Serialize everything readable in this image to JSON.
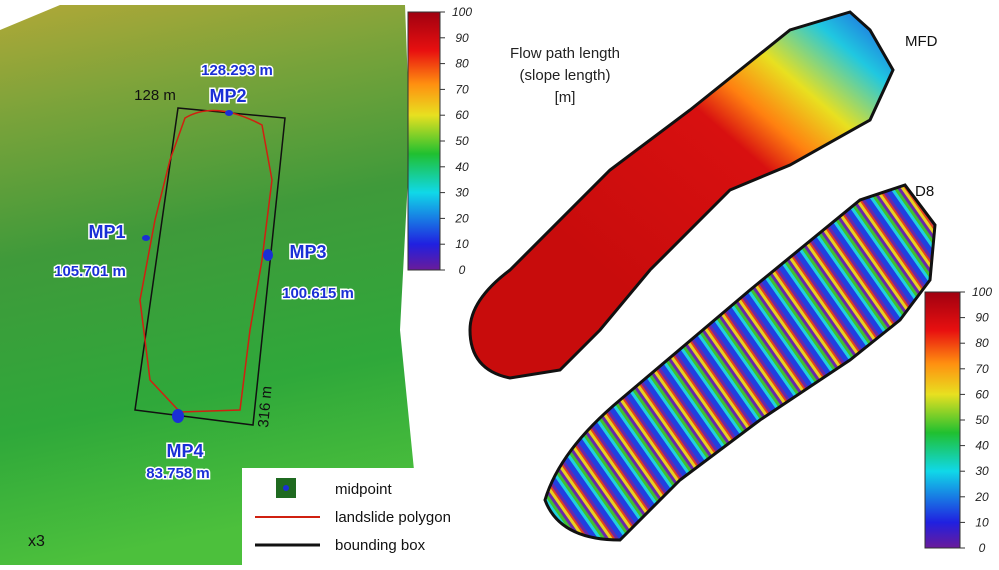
{
  "terrain": {
    "points": [
      {
        "name": "MP2",
        "distance": "128.293 m"
      },
      {
        "name": "MP1",
        "distance": "105.701 m"
      },
      {
        "name": "MP3",
        "distance": "100.615 m"
      },
      {
        "name": "MP4",
        "distance": "83.758 m"
      }
    ],
    "box_width": "128 m",
    "box_length": "316 m",
    "exaggeration": "x3"
  },
  "legend": [
    "midpoint",
    "landslide polygon",
    "bounding box"
  ],
  "colorbar_mfd": {
    "title": [
      "Flow path length",
      "(slope length)",
      "[m]"
    ],
    "ticks": [
      100,
      90,
      80,
      70,
      60,
      50,
      40,
      30,
      20,
      10,
      0
    ]
  },
  "panels": [
    "MFD",
    "D8"
  ],
  "colorbar_d8": {
    "ticks": [
      100,
      90,
      80,
      70,
      60,
      50,
      40,
      30,
      20,
      10,
      0
    ]
  }
}
